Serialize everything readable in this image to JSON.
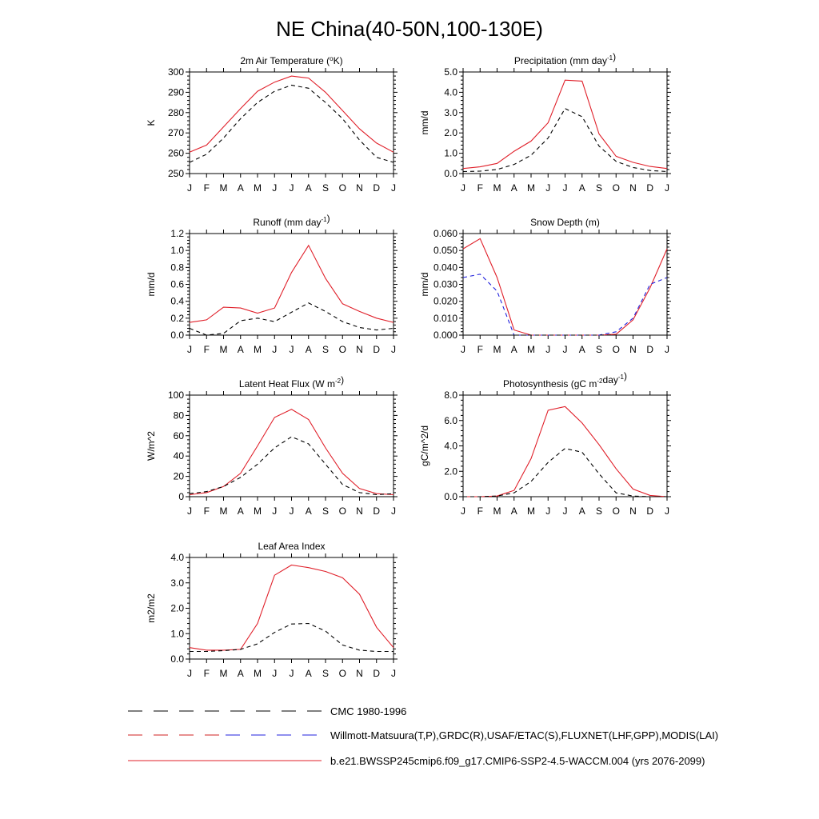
{
  "figure": {
    "title": "NE China(40-50N,100-130E)",
    "months": [
      "J",
      "F",
      "M",
      "A",
      "M",
      "J",
      "J",
      "A",
      "S",
      "O",
      "N",
      "D",
      "J"
    ]
  },
  "legend": [
    {
      "label": "CMC 1980-1996",
      "style": "dashed",
      "color": "#000000"
    },
    {
      "label": "Willmott-Matsuura(T,P),GRDC(R),USAF/ETAC(S),FLUXNET(LHF,GPP),MODIS(LAI)",
      "style": "dashed",
      "color": "#000000",
      "alt_color": "#2222dd"
    },
    {
      "label": "b.e21.BWSSP245cmip6.f09_g17.CMIP6-SSP2-4.5-WACCM.004 (yrs 2076-2099)",
      "style": "solid",
      "color": "#e0202a"
    }
  ],
  "chart_data": [
    {
      "type": "line",
      "title": "2m Air Temperature (°K)",
      "ylabel": "K",
      "ylim": [
        250,
        300
      ],
      "yticks": [
        "250",
        "260",
        "270",
        "280",
        "290",
        "300"
      ],
      "x": [
        "J",
        "F",
        "M",
        "A",
        "M",
        "J",
        "J",
        "A",
        "S",
        "O",
        "N",
        "D",
        "J"
      ],
      "series": [
        {
          "style": "solid",
          "color": "#e0202a",
          "values": [
            260.5,
            264,
            273,
            282,
            290.5,
            295,
            298,
            297,
            290,
            281,
            272,
            265,
            260.5
          ]
        },
        {
          "style": "dashed",
          "color": "#000000",
          "values": [
            255.5,
            259.5,
            267.5,
            277,
            285,
            290.5,
            293.5,
            292,
            285,
            277,
            266.5,
            258,
            255.5
          ]
        }
      ]
    },
    {
      "type": "line",
      "title": "Precipitation (mm day-1)",
      "ylabel": "mm/d",
      "ylim": [
        0,
        5
      ],
      "yticks": [
        "0.0",
        "1.0",
        "2.0",
        "3.0",
        "4.0",
        "5.0"
      ],
      "x": [
        "J",
        "F",
        "M",
        "A",
        "M",
        "J",
        "J",
        "A",
        "S",
        "O",
        "N",
        "D",
        "J"
      ],
      "series": [
        {
          "style": "solid",
          "color": "#e0202a",
          "values": [
            0.25,
            0.33,
            0.5,
            1.1,
            1.6,
            2.5,
            4.6,
            4.55,
            1.95,
            0.85,
            0.55,
            0.35,
            0.25
          ]
        },
        {
          "style": "dashed",
          "color": "#000000",
          "values": [
            0.1,
            0.12,
            0.2,
            0.45,
            0.9,
            1.75,
            3.2,
            2.8,
            1.35,
            0.6,
            0.3,
            0.15,
            0.1
          ]
        }
      ]
    },
    {
      "type": "line",
      "title": "Runoff (mm day-1)",
      "ylabel": "mm/d",
      "ylim": [
        0,
        1.2
      ],
      "yticks": [
        "0.0",
        "0.2",
        "0.4",
        "0.6",
        "0.8",
        "1.0",
        "1.2"
      ],
      "x": [
        "J",
        "F",
        "M",
        "A",
        "M",
        "J",
        "J",
        "A",
        "S",
        "O",
        "N",
        "D",
        "J"
      ],
      "series": [
        {
          "style": "solid",
          "color": "#e0202a",
          "values": [
            0.15,
            0.18,
            0.33,
            0.32,
            0.26,
            0.32,
            0.74,
            1.06,
            0.67,
            0.37,
            0.28,
            0.2,
            0.15
          ]
        },
        {
          "style": "dashed",
          "color": "#000000",
          "values": [
            0.08,
            0.0,
            0.02,
            0.17,
            0.2,
            0.16,
            0.27,
            0.38,
            0.28,
            0.16,
            0.09,
            0.06,
            0.08
          ]
        }
      ]
    },
    {
      "type": "line",
      "title": "Snow Depth (m)",
      "ylabel": "mm/d",
      "ylim": [
        0,
        0.06
      ],
      "yticks": [
        "0.000",
        "0.010",
        "0.020",
        "0.030",
        "0.040",
        "0.050",
        "0.060"
      ],
      "x": [
        "J",
        "F",
        "M",
        "A",
        "M",
        "J",
        "J",
        "A",
        "S",
        "O",
        "N",
        "D",
        "J"
      ],
      "series": [
        {
          "style": "solid",
          "color": "#e0202a",
          "values": [
            0.051,
            0.057,
            0.034,
            0.003,
            0.0,
            0.0,
            0.0,
            0.0,
            0.0,
            0.0005,
            0.009,
            0.028,
            0.051
          ]
        },
        {
          "style": "dashed",
          "color": "#2222dd",
          "values": [
            0.034,
            0.036,
            0.026,
            0.0,
            0.0,
            0.0,
            0.0,
            0.0,
            0.0,
            0.002,
            0.01,
            0.03,
            0.034
          ]
        },
        {
          "style": "dashed",
          "color": "#000000",
          "values": [
            0,
            0,
            0,
            0,
            0,
            0,
            0,
            0,
            0,
            0,
            0,
            0,
            0
          ]
        }
      ]
    },
    {
      "type": "line",
      "title": "Latent Heat Flux (W m-2)",
      "ylabel": "W/m^2",
      "ylim": [
        0,
        100
      ],
      "yticks": [
        "0",
        "20",
        "40",
        "60",
        "80",
        "100"
      ],
      "x": [
        "J",
        "F",
        "M",
        "A",
        "M",
        "J",
        "J",
        "A",
        "S",
        "O",
        "N",
        "D",
        "J"
      ],
      "series": [
        {
          "style": "solid",
          "color": "#e0202a",
          "values": [
            2,
            4,
            10,
            23,
            50,
            78,
            86,
            76,
            48,
            23,
            8,
            3,
            2
          ]
        },
        {
          "style": "dashed",
          "color": "#000000",
          "values": [
            3,
            5,
            10,
            19,
            32,
            48,
            59,
            52,
            32,
            12,
            4,
            2,
            3
          ]
        }
      ]
    },
    {
      "type": "line",
      "title": "Photosynthesis (gC m-2day-1)",
      "ylabel": "gC/m^2/d",
      "ylim": [
        0,
        8
      ],
      "yticks": [
        "0.0",
        "2.0",
        "4.0",
        "6.0",
        "8.0"
      ],
      "x": [
        "J",
        "F",
        "M",
        "A",
        "M",
        "J",
        "J",
        "A",
        "S",
        "O",
        "N",
        "D",
        "J"
      ],
      "series": [
        {
          "style": "solid",
          "color": "#e0202a",
          "values": [
            0.0,
            0.0,
            0.05,
            0.5,
            3.0,
            6.8,
            7.1,
            5.8,
            4.1,
            2.2,
            0.6,
            0.1,
            0.0
          ]
        },
        {
          "style": "dashed",
          "color": "#000000",
          "values": [
            0.0,
            0.0,
            0.05,
            0.3,
            1.2,
            2.7,
            3.8,
            3.5,
            1.8,
            0.3,
            0.05,
            0.0,
            0.0
          ]
        }
      ]
    },
    {
      "type": "line",
      "title": "Leaf Area Index",
      "ylabel": "m2/m2",
      "ylim": [
        0,
        4
      ],
      "yticks": [
        "0.0",
        "1.0",
        "2.0",
        "3.0",
        "4.0"
      ],
      "x": [
        "J",
        "F",
        "M",
        "A",
        "M",
        "J",
        "J",
        "A",
        "S",
        "O",
        "N",
        "D",
        "J"
      ],
      "series": [
        {
          "style": "solid",
          "color": "#e0202a",
          "values": [
            0.45,
            0.35,
            0.35,
            0.38,
            1.4,
            3.3,
            3.7,
            3.6,
            3.45,
            3.2,
            2.55,
            1.25,
            0.45
          ]
        },
        {
          "style": "dashed",
          "color": "#000000",
          "values": [
            0.3,
            0.3,
            0.33,
            0.38,
            0.6,
            1.05,
            1.38,
            1.4,
            1.1,
            0.55,
            0.35,
            0.3,
            0.3
          ]
        }
      ]
    }
  ]
}
